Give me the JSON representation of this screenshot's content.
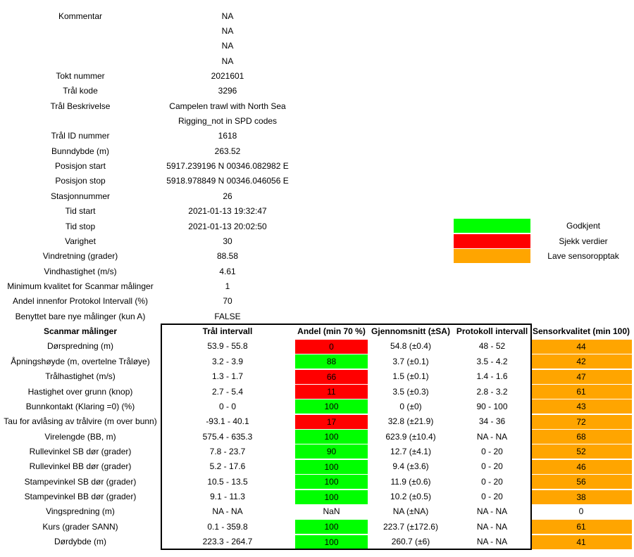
{
  "colors": {
    "green": "#00ff00",
    "red": "#ff0000",
    "orange": "#ffa500"
  },
  "info": [
    {
      "label": "Kommentar",
      "value": "NA"
    },
    {
      "label": "",
      "value": "NA"
    },
    {
      "label": "",
      "value": "NA"
    },
    {
      "label": "",
      "value": "NA"
    },
    {
      "label": "Tokt nummer",
      "value": "2021601"
    },
    {
      "label": "Trål kode",
      "value": "3296"
    },
    {
      "label": "Trål Beskrivelse",
      "value": "Campelen trawl with North Sea"
    },
    {
      "label": "",
      "value": "Rigging_not in SPD codes"
    },
    {
      "label": "Trål ID nummer",
      "value": "1618"
    },
    {
      "label": "Bunndybde (m)",
      "value": "263.52"
    },
    {
      "label": "Posisjon start",
      "value": "5917.239196 N 00346.082982 E"
    },
    {
      "label": "Posisjon stop",
      "value": "5918.978849 N 00346.046056 E"
    },
    {
      "label": "Stasjonnummer",
      "value": "26"
    },
    {
      "label": "Tid start",
      "value": "2021-01-13 19:32:47"
    },
    {
      "label": "Tid stop",
      "value": "2021-01-13 20:02:50"
    },
    {
      "label": "Varighet",
      "value": "30"
    },
    {
      "label": "Vindretning (grader)",
      "value": "88.58"
    },
    {
      "label": "Vindhastighet (m/s)",
      "value": "4.61"
    },
    {
      "label": "Minimum kvalitet for Scanmar målinger",
      "value": "1"
    },
    {
      "label": "Andel innenfor Protokol Intervall (%)",
      "value": "70"
    },
    {
      "label": "Benyttet bare nye målinger (kun A)",
      "value": "FALSE"
    }
  ],
  "legend": [
    {
      "label": "Godkjent",
      "color": "#00ff00"
    },
    {
      "label": "Sjekk verdier",
      "color": "#ff0000"
    },
    {
      "label": "Lave sensoropptak",
      "color": "#ffa500"
    }
  ],
  "table": {
    "headers": [
      "Scanmar målinger",
      "Trål intervall",
      "Andel (min 70 %)",
      "Gjennomsnitt (±SA)",
      "Protokoll intervall",
      "Sensorkvalitet (min 100)"
    ],
    "rows": [
      {
        "name": "Dørspredning (m)",
        "interval": "53.9 - 55.8",
        "andel": "0",
        "andel_status": "red",
        "mean": "54.8 (±0.4)",
        "protocol": "48 - 52",
        "sensor": "44",
        "sensor_status": "orange"
      },
      {
        "name": "Åpningshøyde (m, overtelne Tråløye)",
        "interval": "3.2 - 3.9",
        "andel": "88",
        "andel_status": "green",
        "mean": "3.7 (±0.1)",
        "protocol": "3.5 - 4.2",
        "sensor": "42",
        "sensor_status": "orange"
      },
      {
        "name": "Trålhastighet (m/s)",
        "interval": "1.3 - 1.7",
        "andel": "66",
        "andel_status": "red",
        "mean": "1.5 (±0.1)",
        "protocol": "1.4 - 1.6",
        "sensor": "47",
        "sensor_status": "orange"
      },
      {
        "name": "Hastighet over grunn (knop)",
        "interval": "2.7 - 5.4",
        "andel": "11",
        "andel_status": "red",
        "mean": "3.5 (±0.3)",
        "protocol": "2.8 - 3.2",
        "sensor": "61",
        "sensor_status": "orange"
      },
      {
        "name": "Bunnkontakt (Klaring =0) (%)",
        "interval": "0 - 0",
        "andel": "100",
        "andel_status": "green",
        "mean": "0 (±0)",
        "protocol": "90 - 100",
        "sensor": "43",
        "sensor_status": "orange"
      },
      {
        "name": "Tau for avlåsing av trålvire (m over bunn)",
        "interval": "-93.1 - 40.1",
        "andel": "17",
        "andel_status": "red",
        "mean": "32.8 (±21.9)",
        "protocol": "34 - 36",
        "sensor": "72",
        "sensor_status": "orange"
      },
      {
        "name": "Virelengde (BB, m)",
        "interval": "575.4 - 635.3",
        "andel": "100",
        "andel_status": "green",
        "mean": "623.9 (±10.4)",
        "protocol": "NA - NA",
        "sensor": "68",
        "sensor_status": "orange"
      },
      {
        "name": "Rullevinkel SB dør (grader)",
        "interval": "7.8 - 23.7",
        "andel": "90",
        "andel_status": "green",
        "mean": "12.7 (±4.1)",
        "protocol": "0 - 20",
        "sensor": "52",
        "sensor_status": "orange"
      },
      {
        "name": "Rullevinkel BB dør (grader)",
        "interval": "5.2 - 17.6",
        "andel": "100",
        "andel_status": "green",
        "mean": "9.4 (±3.6)",
        "protocol": "0 - 20",
        "sensor": "46",
        "sensor_status": "orange"
      },
      {
        "name": "Stampevinkel SB dør (grader)",
        "interval": "10.5 - 13.5",
        "andel": "100",
        "andel_status": "green",
        "mean": "11.9 (±0.6)",
        "protocol": "0 - 20",
        "sensor": "56",
        "sensor_status": "orange"
      },
      {
        "name": "Stampevinkel BB dør (grader)",
        "interval": "9.1 - 11.3",
        "andel": "100",
        "andel_status": "green",
        "mean": "10.2 (±0.5)",
        "protocol": "0 - 20",
        "sensor": "38",
        "sensor_status": "orange"
      },
      {
        "name": "Vingspredning (m)",
        "interval": "NA - NA",
        "andel": "NaN",
        "andel_status": "none",
        "mean": "NA (±NA)",
        "protocol": "NA - NA",
        "sensor": "0",
        "sensor_status": "none"
      },
      {
        "name": "Kurs (grader SANN)",
        "interval": "0.1 - 359.8",
        "andel": "100",
        "andel_status": "green",
        "mean": "223.7 (±172.6)",
        "protocol": "NA - NA",
        "sensor": "61",
        "sensor_status": "orange"
      },
      {
        "name": "Dørdybde (m)",
        "interval": "223.3 - 264.7",
        "andel": "100",
        "andel_status": "green",
        "mean": "260.7 (±6)",
        "protocol": "NA - NA",
        "sensor": "41",
        "sensor_status": "orange"
      }
    ]
  }
}
